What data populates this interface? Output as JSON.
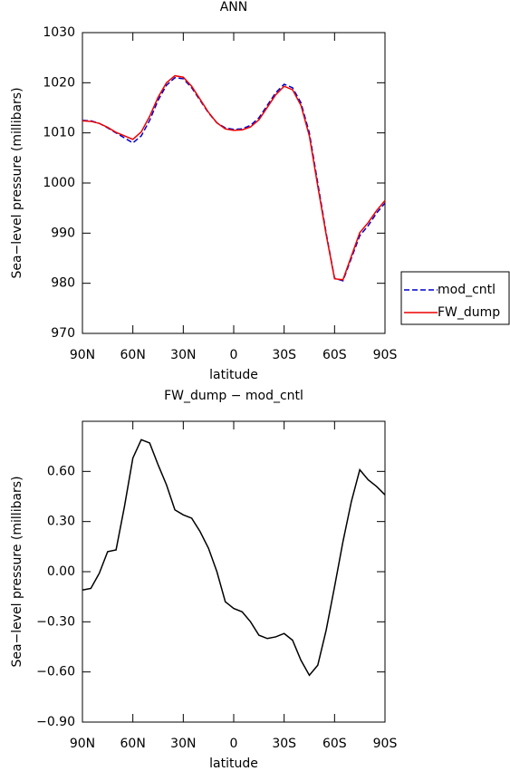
{
  "chart_data": [
    {
      "type": "line",
      "title": "ANN",
      "xlabel": "latitude",
      "ylabel": "Sea−level pressure (millibars)",
      "x": [
        90,
        85,
        80,
        75,
        70,
        65,
        60,
        55,
        50,
        45,
        40,
        35,
        30,
        25,
        20,
        15,
        10,
        5,
        0,
        -5,
        -10,
        -15,
        -20,
        -25,
        -30,
        -35,
        -40,
        -45,
        -50,
        -55,
        -60,
        -65,
        -70,
        -75,
        -80,
        -85,
        -90
      ],
      "series": [
        {
          "name": "mod_cntl",
          "color": "#0000cc",
          "dashed": true,
          "values": [
            1012.5,
            1012.4,
            1011.9,
            1011.0,
            1010.0,
            1009.0,
            1008.0,
            1009.4,
            1012.5,
            1016.5,
            1019.5,
            1021.0,
            1020.8,
            1019.0,
            1016.5,
            1014.0,
            1012.0,
            1011.0,
            1010.7,
            1010.8,
            1011.5,
            1013.0,
            1015.5,
            1018.0,
            1019.7,
            1019.0,
            1016.0,
            1010.0,
            1000.0,
            990.0,
            981.0,
            980.5,
            985.0,
            989.5,
            991.5,
            994.0,
            996.0
          ]
        },
        {
          "name": "FW_dump",
          "color": "#ee0000",
          "dashed": false,
          "values": [
            1012.4,
            1012.3,
            1011.9,
            1011.1,
            1010.1,
            1009.4,
            1008.7,
            1010.2,
            1013.3,
            1017.1,
            1020.0,
            1021.4,
            1021.1,
            1019.3,
            1016.7,
            1014.1,
            1012.0,
            1010.8,
            1010.5,
            1010.6,
            1011.2,
            1012.6,
            1015.1,
            1017.6,
            1019.3,
            1018.6,
            1015.5,
            1009.4,
            999.4,
            989.7,
            980.9,
            980.7,
            985.4,
            990.1,
            992.1,
            994.5,
            996.5
          ]
        }
      ],
      "xlim": [
        90,
        -90
      ],
      "xticks": [
        {
          "value": 90,
          "label": "90N"
        },
        {
          "value": 60,
          "label": "60N"
        },
        {
          "value": 30,
          "label": "30N"
        },
        0,
        {
          "value": -30,
          "label": "30S"
        },
        {
          "value": -60,
          "label": "60S"
        },
        {
          "value": -90,
          "label": "90S"
        }
      ],
      "ylim": [
        970,
        1030
      ],
      "yticks": [
        970,
        980,
        990,
        1000,
        1010,
        1020,
        1030
      ],
      "legend": "right"
    },
    {
      "type": "line",
      "title": "FW_dump − mod_cntl",
      "xlabel": "latitude",
      "ylabel": "Sea−level pressure (millibars)",
      "x": [
        90,
        85,
        80,
        75,
        70,
        65,
        60,
        55,
        50,
        45,
        40,
        35,
        30,
        25,
        20,
        15,
        10,
        5,
        0,
        -5,
        -10,
        -15,
        -20,
        -25,
        -30,
        -35,
        -40,
        -45,
        -50,
        -55,
        -60,
        -65,
        -70,
        -75,
        -80,
        -85,
        -90
      ],
      "series": [
        {
          "color": "#000000",
          "dashed": false,
          "values": [
            -0.11,
            -0.1,
            -0.01,
            0.12,
            0.13,
            0.39,
            0.68,
            0.79,
            0.77,
            0.64,
            0.52,
            0.37,
            0.34,
            0.32,
            0.24,
            0.14,
            0.0,
            -0.18,
            -0.22,
            -0.24,
            -0.3,
            -0.38,
            -0.4,
            -0.39,
            -0.37,
            -0.41,
            -0.53,
            -0.62,
            -0.56,
            -0.35,
            -0.09,
            0.18,
            0.42,
            0.61,
            0.55,
            0.51,
            0.46
          ]
        }
      ],
      "xlim": [
        90,
        -90
      ],
      "xticks": [
        {
          "value": 90,
          "label": "90N"
        },
        {
          "value": 60,
          "label": "60N"
        },
        {
          "value": 30,
          "label": "30N"
        },
        0,
        {
          "value": -30,
          "label": "30S"
        },
        {
          "value": -60,
          "label": "60S"
        },
        {
          "value": -90,
          "label": "90S"
        }
      ],
      "ylim": [
        -0.9,
        0.9
      ],
      "yticks": [
        {
          "value": -0.9,
          "label": "−0.90"
        },
        {
          "value": -0.6,
          "label": "−0.60"
        },
        {
          "value": -0.3,
          "label": "−0.30"
        },
        {
          "value": 0,
          "label": "0.00"
        },
        {
          "value": 0.3,
          "label": "0.30"
        },
        {
          "value": 0.6,
          "label": "0.60"
        }
      ]
    }
  ]
}
